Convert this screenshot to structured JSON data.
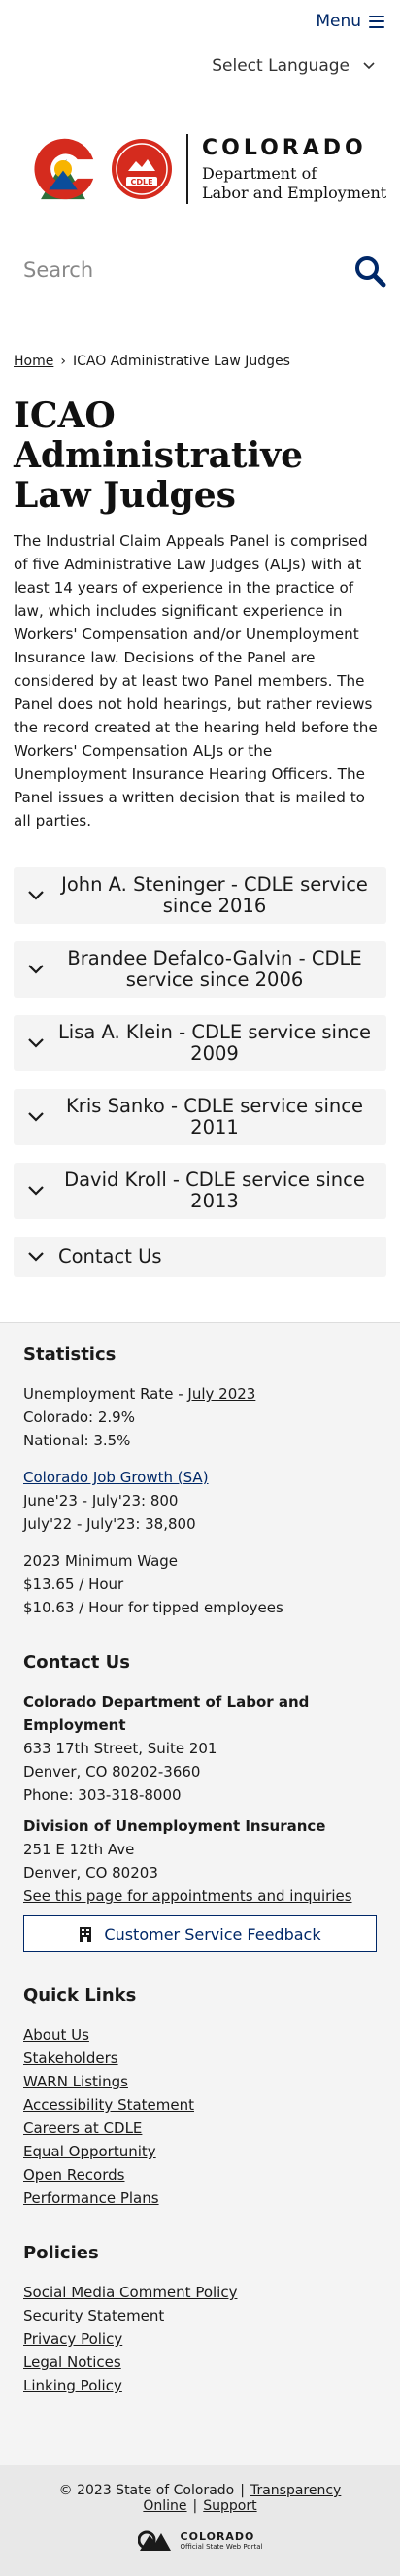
{
  "header": {
    "menu_label": "Menu",
    "language_label": "Select Language",
    "logo_state": "COLORADO",
    "logo_dept_line1": "Department of",
    "logo_dept_line2": "Labor and Employment",
    "seal_text": "CDLE"
  },
  "search": {
    "placeholder": "Search"
  },
  "breadcrumb": {
    "home": "Home",
    "separator": "›",
    "current": "ICAO Administrative Law Judges"
  },
  "page": {
    "title": "ICAO Administrative Law Judges",
    "intro": "The Industrial Claim Appeals Panel is comprised of five Administrative Law Judges (ALJs) with at least 14 years of experience in the practice of law, which includes significant experience in Workers' Compensation and/or Unemployment Insurance law. Decisions of the Panel are considered by at least two Panel members. The Panel does not hold hearings, but rather reviews the record created at the hearing held before the Workers' Compensation ALJs or the Unemployment Insurance Hearing Officers. The Panel issues a written decision that is mailed to all parties."
  },
  "accordions": [
    "John A. Steninger - CDLE service since 2016",
    "Brandee Defalco-Galvin - CDLE service since 2006",
    "Lisa A. Klein - CDLE service since 2009",
    "Kris Sanko - CDLE service since 2011",
    "David Kroll - CDLE service since 2013",
    "Contact Us"
  ],
  "footer": {
    "statistics": {
      "heading": "Statistics",
      "unemployment_prefix": "Unemployment Rate - ",
      "unemployment_link": "July 2023",
      "colorado": "Colorado: 2.9%",
      "national": "National: 3.5%",
      "job_growth_link": "Colorado Job Growth (SA)",
      "job_line1": "June'23 - July'23: 800",
      "job_line2": "July'22 - July'23: 38,800",
      "min_wage_title": "2023 Minimum Wage",
      "min_wage1": "$13.65 / Hour",
      "min_wage2": "$10.63 / Hour for tipped employees"
    },
    "contact": {
      "heading": "Contact Us",
      "org_name": "Colorado Department of Labor and Employment",
      "org_addr1": "633 17th Street, Suite 201",
      "org_addr2": "Denver, CO  80202-3660",
      "org_phone": "Phone: 303-318-8000",
      "ui_name": "Division of Unemployment Insurance",
      "ui_addr1": "251 E 12th Ave",
      "ui_addr2": "Denver, CO  80203",
      "ui_link": "See this page for appointments and inquiries",
      "feedback_button": "Customer Service Feedback"
    },
    "quick_links": {
      "heading": "Quick Links",
      "items": [
        "About Us",
        "Stakeholders",
        "WARN Listings",
        "Accessibility Statement",
        "Careers at CDLE",
        "Equal Opportunity",
        "Open Records",
        "Performance Plans"
      ]
    },
    "policies": {
      "heading": "Policies",
      "items": [
        "Social Media Comment Policy",
        "Security Statement",
        "Privacy Policy",
        "Legal Notices",
        "Linking Policy"
      ]
    },
    "bottom": {
      "copyright": "© 2023 State of Colorado",
      "transparency": "Transparency Online",
      "support": "Support",
      "portal_name": "COLORADO",
      "portal_sub": "Official State Web Portal"
    }
  },
  "colors": {
    "brand_navy": "#002868",
    "co_red": "#d52b1e",
    "co_gold": "#f8b400",
    "co_blue": "#0b4d9b",
    "co_green": "#2f6f3a"
  }
}
